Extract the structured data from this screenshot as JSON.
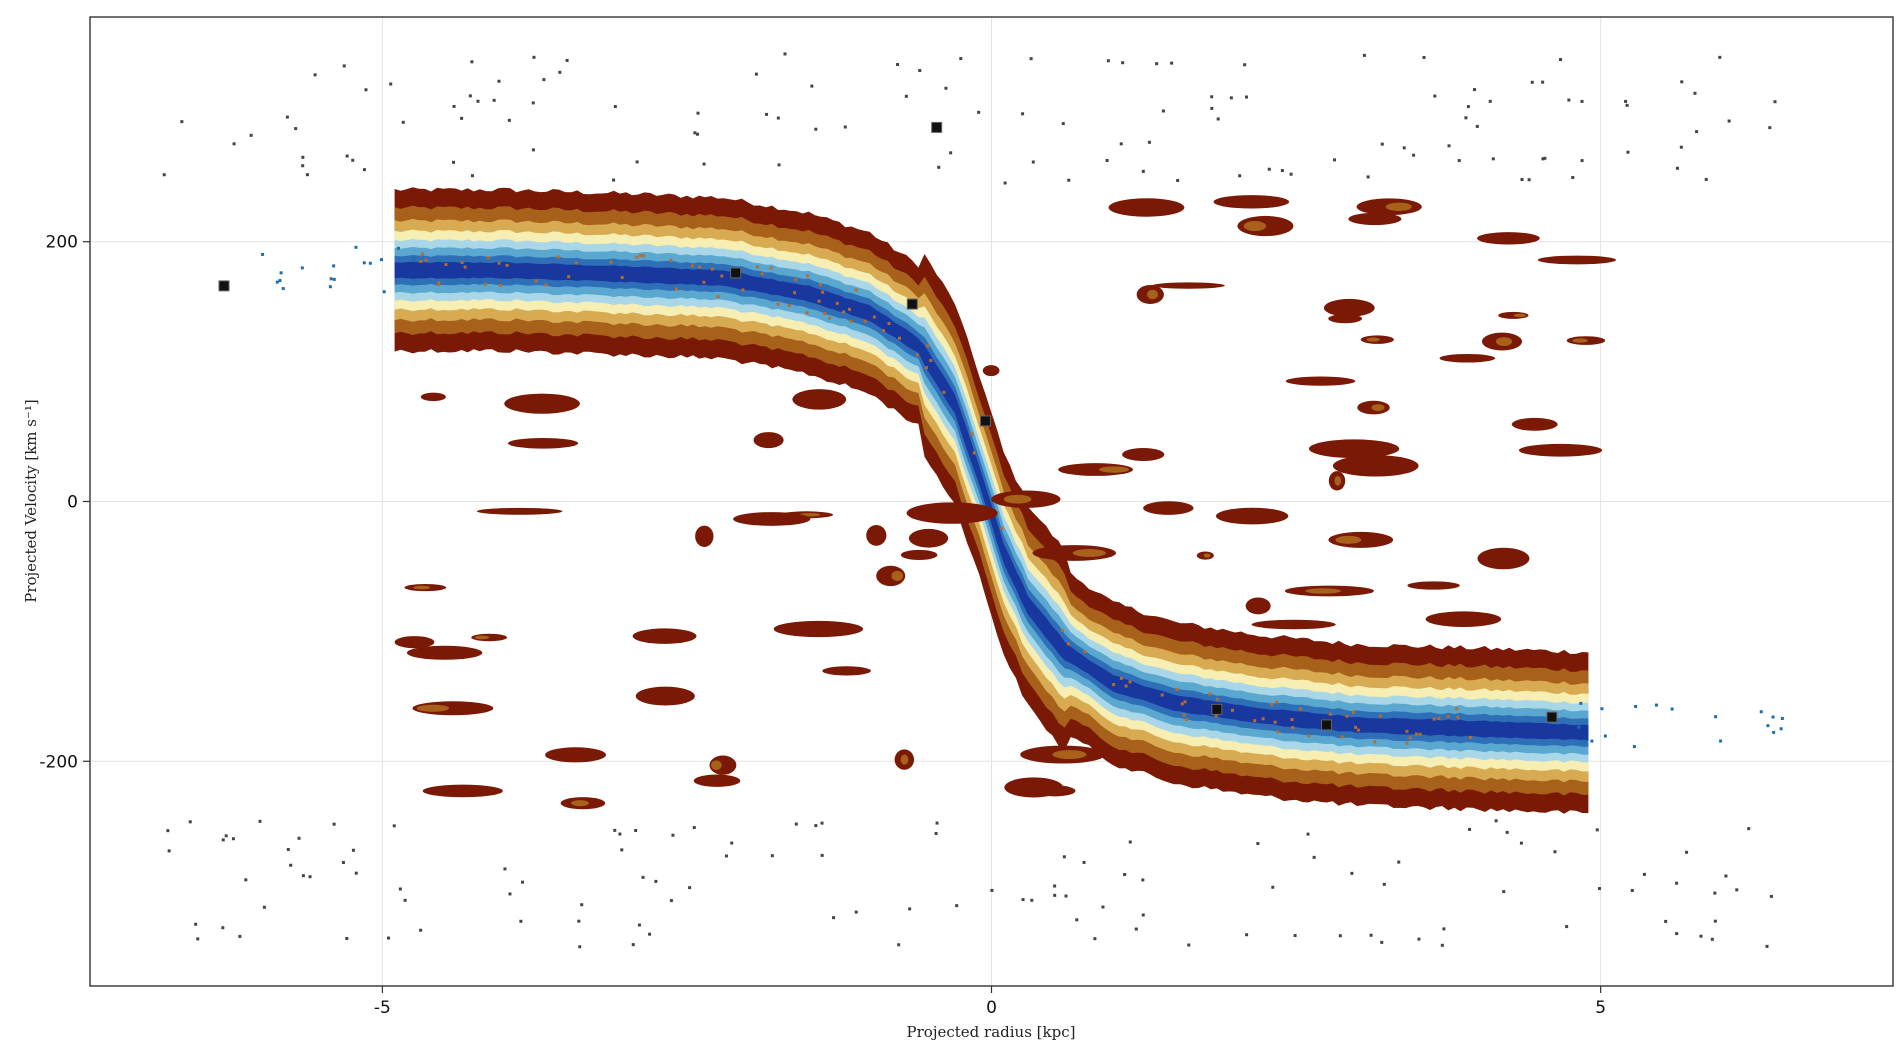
{
  "chart_data": {
    "type": "contour",
    "title": "",
    "xlabel": "Projected radius [kpc]",
    "ylabel": "Projected Velocity [km s⁻¹]",
    "xlim": [
      -7.4,
      7.4
    ],
    "ylim": [
      -373,
      373
    ],
    "xticks": [
      -5,
      0,
      5
    ],
    "xtick_labels": [
      "-5",
      "0",
      "5"
    ],
    "yticks": [
      -200,
      0,
      200
    ],
    "ytick_labels": [
      "-200",
      "0",
      "200"
    ],
    "grid": true,
    "legend": "none",
    "contour_extent_x": [
      -4.9,
      4.9
    ],
    "contour_colors": [
      "#7a1a06",
      "#a8611a",
      "#d8ab52",
      "#f6eeb2",
      "#a9d7e8",
      "#5aa8d0",
      "#2f6fb8",
      "#1838a0"
    ],
    "rotation_curve": {
      "x": [
        -4.9,
        -4.0,
        -3.0,
        -2.2,
        -1.5,
        -1.0,
        -0.6,
        -0.3,
        -0.1,
        0.1,
        0.3,
        0.6,
        1.0,
        1.5,
        2.2,
        3.0,
        4.0,
        4.9
      ],
      "y": [
        178,
        178,
        175,
        172,
        160,
        145,
        120,
        75,
        20,
        -40,
        -80,
        -115,
        -140,
        -155,
        -165,
        -172,
        -175,
        -178
      ]
    },
    "stellar_points": {
      "x": [
        -6.3,
        -2.1,
        -0.65,
        -0.45,
        -0.05,
        1.85,
        2.75,
        4.6
      ],
      "y": [
        166,
        176,
        152,
        288,
        62,
        -160,
        -172,
        -166
      ]
    }
  }
}
